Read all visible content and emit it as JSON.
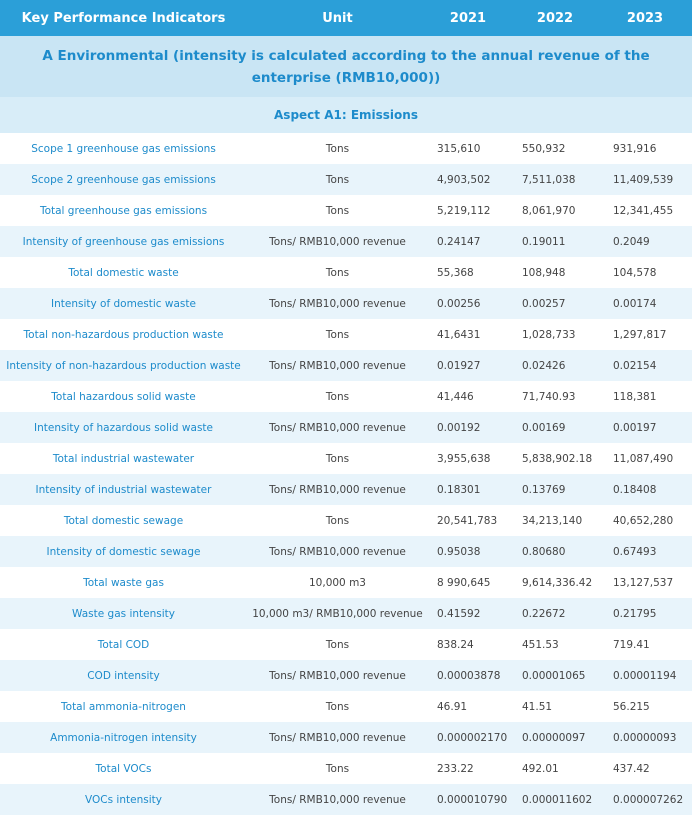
{
  "table": {
    "header": [
      "Key Performance Indicators",
      "Unit",
      "2021",
      "2022",
      "2023"
    ],
    "section": "A Environmental (intensity is calculated according to the annual revenue of the enterprise (RMB10,000))",
    "aspect": "Aspect A1: Emissions",
    "rows": [
      [
        "Scope 1 greenhouse gas emissions",
        "Tons",
        "315,610",
        "550,932",
        "931,916"
      ],
      [
        "Scope 2 greenhouse gas emissions",
        "Tons",
        "4,903,502",
        "7,511,038",
        "11,409,539"
      ],
      [
        "Total greenhouse gas emissions",
        "Tons",
        "5,219,112",
        "8,061,970",
        "12,341,455"
      ],
      [
        "Intensity of greenhouse gas emissions",
        "Tons/ RMB10,000 revenue",
        "0.24147",
        "0.19011",
        "0.2049"
      ],
      [
        "Total domestic waste",
        "Tons",
        "55,368",
        "108,948",
        "104,578"
      ],
      [
        "Intensity of domestic waste",
        "Tons/ RMB10,000 revenue",
        "0.00256",
        "0.00257",
        "0.00174"
      ],
      [
        "Total non-hazardous production waste",
        "Tons",
        "41,6431",
        "1,028,733",
        "1,297,817"
      ],
      [
        "Intensity of non-hazardous production waste",
        "Tons/ RMB10,000 revenue",
        "0.01927",
        "0.02426",
        "0.02154"
      ],
      [
        "Total hazardous solid waste",
        "Tons",
        "41,446",
        "71,740.93",
        "118,381"
      ],
      [
        "Intensity of hazardous solid waste",
        "Tons/ RMB10,000 revenue",
        "0.00192",
        "0.00169",
        "0.00197"
      ],
      [
        "Total industrial wastewater",
        "Tons",
        "3,955,638",
        "5,838,902.18",
        "11,087,490"
      ],
      [
        "Intensity of industrial wastewater",
        "Tons/ RMB10,000 revenue",
        "0.18301",
        "0.13769",
        "0.18408"
      ],
      [
        "Total domestic sewage",
        "Tons",
        "20,541,783",
        "34,213,140",
        "40,652,280"
      ],
      [
        "Intensity of domestic sewage",
        "Tons/ RMB10,000 revenue",
        "0.95038",
        "0.80680",
        "0.67493"
      ],
      [
        "Total waste gas",
        "10,000 m3",
        "8 990,645",
        "9,614,336.42",
        "13,127,537"
      ],
      [
        "Waste gas intensity",
        "10,000 m3/ RMB10,000 revenue",
        "0.41592",
        "0.22672",
        "0.21795"
      ],
      [
        "Total COD",
        "Tons",
        "838.24",
        "451.53",
        "719.41"
      ],
      [
        "COD intensity",
        "Tons/ RMB10,000 revenue",
        "0.00003878",
        "0.00001065",
        "0.00001194"
      ],
      [
        "Total ammonia-nitrogen",
        "Tons",
        "46.91",
        "41.51",
        "56.215"
      ],
      [
        "Ammonia-nitrogen intensity",
        "Tons/ RMB10,000 revenue",
        "0.000002170",
        "0.00000097",
        "0.00000093"
      ],
      [
        "Total VOCs",
        "Tons",
        "233.22",
        "492.01",
        "437.42"
      ],
      [
        "VOCs intensity",
        "Tons/ RMB10,000 revenue",
        "0.000010790",
        "0.000011602",
        "0.000007262"
      ]
    ]
  }
}
